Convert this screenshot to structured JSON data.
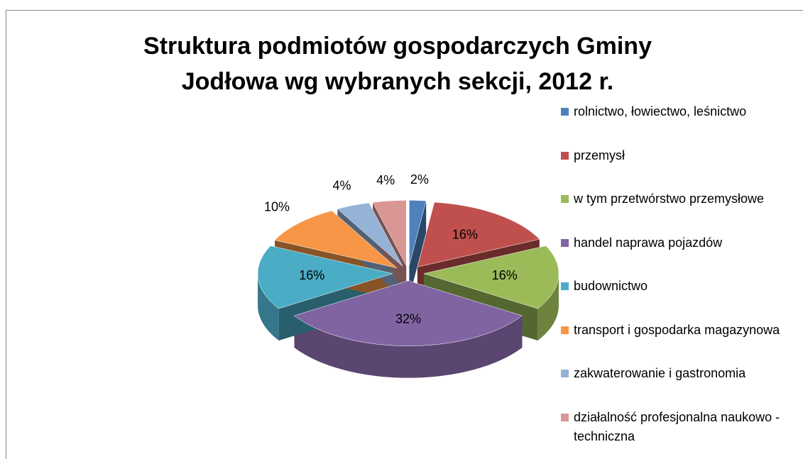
{
  "chart_data": {
    "type": "pie",
    "title": "Struktura podmiotów gospodarczych Gminy Jodłowa wg wybranych sekcji, 2012 r.",
    "categories": [
      "rolnictwo, łowiectwo, leśnictwo",
      "przemysł",
      "w tym przetwórstwo przemysłowe",
      "handel naprawa pojazdów",
      "budownictwo",
      "transport i gospodarka magazynowa",
      "zakwaterowanie i gastronomia",
      "działalność profesjonalna naukowo -techniczna"
    ],
    "values": [
      2,
      16,
      16,
      32,
      16,
      10,
      4,
      4
    ],
    "value_labels": [
      "2%",
      "16%",
      "16%",
      "32%",
      "16%",
      "10%",
      "4%",
      "4%"
    ],
    "colors": [
      "#4f81bd",
      "#c0504d",
      "#9bbb59",
      "#8064a2",
      "#4bacc6",
      "#f79646",
      "#95b3d7",
      "#da9694"
    ],
    "legend": "right"
  }
}
